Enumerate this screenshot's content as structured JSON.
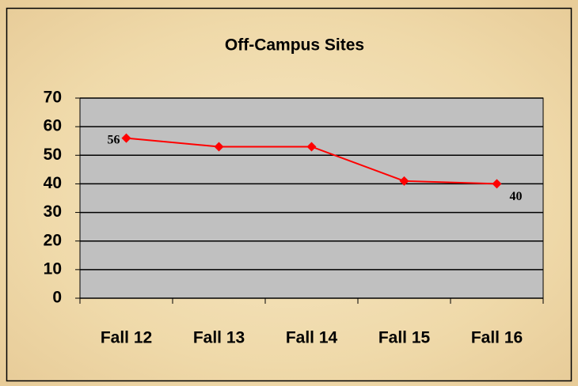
{
  "chart_data": {
    "type": "line",
    "title": "Off-Campus Sites",
    "categories": [
      "Fall 12",
      "Fall 13",
      "Fall 14",
      "Fall 15",
      "Fall 16"
    ],
    "series": [
      {
        "name": "Off-Campus Sites",
        "color": "#ff0000",
        "values": [
          56,
          53,
          53,
          41,
          40
        ],
        "value_labels": [
          "56",
          null,
          null,
          null,
          "40"
        ]
      }
    ],
    "ylim": [
      0,
      70
    ],
    "yticks": [
      0,
      10,
      20,
      30,
      40,
      50,
      60,
      70
    ],
    "grid": true
  }
}
